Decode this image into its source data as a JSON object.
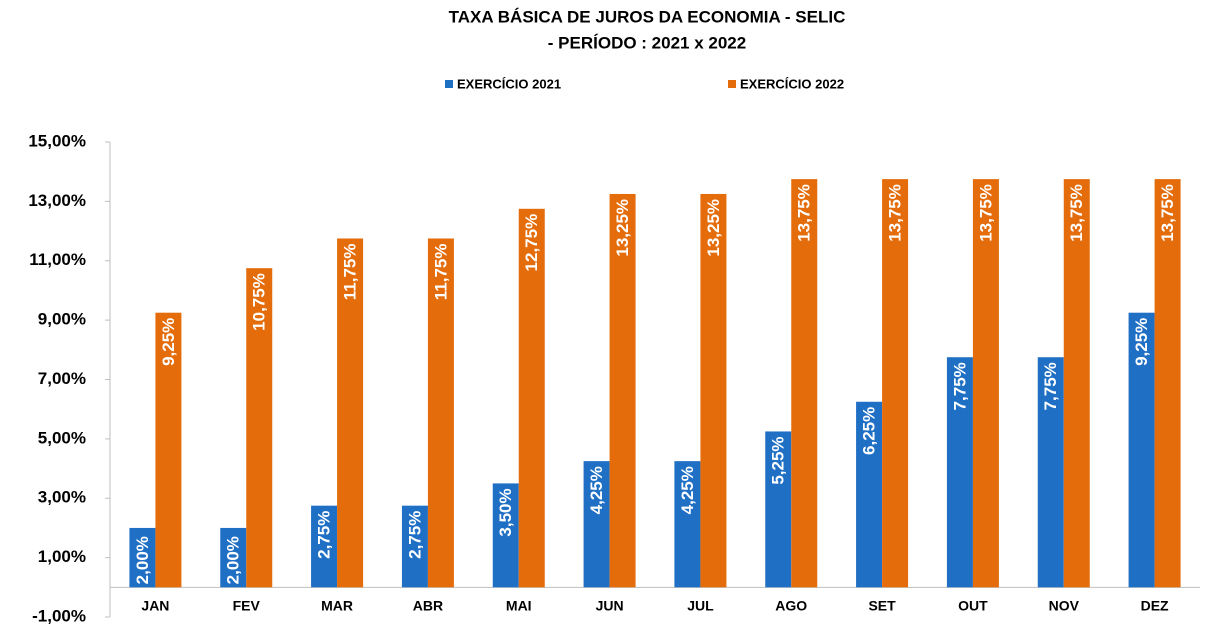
{
  "chart_data": {
    "type": "bar",
    "title": "TAXA BÁSICA DE JUROS DA ECONOMIA - SELIC",
    "subtitle": "- PERÍODO : 2021 x 2022",
    "categories": [
      "JAN",
      "FEV",
      "MAR",
      "ABR",
      "MAI",
      "JUN",
      "JUL",
      "AGO",
      "SET",
      "OUT",
      "NOV",
      "DEZ"
    ],
    "series": [
      {
        "name": "EXERCÍCIO 2021",
        "color": "#1f6fc5",
        "values": [
          2,
          2,
          2.75,
          2.75,
          3.5,
          4.25,
          4.25,
          5.25,
          6.25,
          7.75,
          7.75,
          9.25
        ],
        "value_labels": [
          "2,00%",
          "2,00%",
          "2,75%",
          "2,75%",
          "3,50%",
          "4,25%",
          "4,25%",
          "5,25%",
          "6,25%",
          "7,75%",
          "7,75%",
          "9,25%"
        ]
      },
      {
        "name": "EXERCÍCIO 2022",
        "color": "#e46c0a",
        "values": [
          9.25,
          10.75,
          11.75,
          11.75,
          12.75,
          13.25,
          13.25,
          13.75,
          13.75,
          13.75,
          13.75,
          13.75
        ],
        "value_labels": [
          "9,25%",
          "10,75%",
          "11,75%",
          "11,75%",
          "12,75%",
          "13,25%",
          "13,25%",
          "13,75%",
          "13,75%",
          "13,75%",
          "13,75%",
          "13,75%"
        ]
      }
    ],
    "ylim": [
      -1,
      15
    ],
    "yticks": [
      {
        "value": -1,
        "label": "-1,00%"
      },
      {
        "value": 1,
        "label": "1,00%"
      },
      {
        "value": 3,
        "label": "3,00%"
      },
      {
        "value": 5,
        "label": "5,00%"
      },
      {
        "value": 7,
        "label": "7,00%"
      },
      {
        "value": 9,
        "label": "9,00%"
      },
      {
        "value": 11,
        "label": "11,00%"
      },
      {
        "value": 13,
        "label": "13,00%"
      },
      {
        "value": 15,
        "label": "15,00%"
      }
    ],
    "grid": false,
    "legend": "top"
  }
}
